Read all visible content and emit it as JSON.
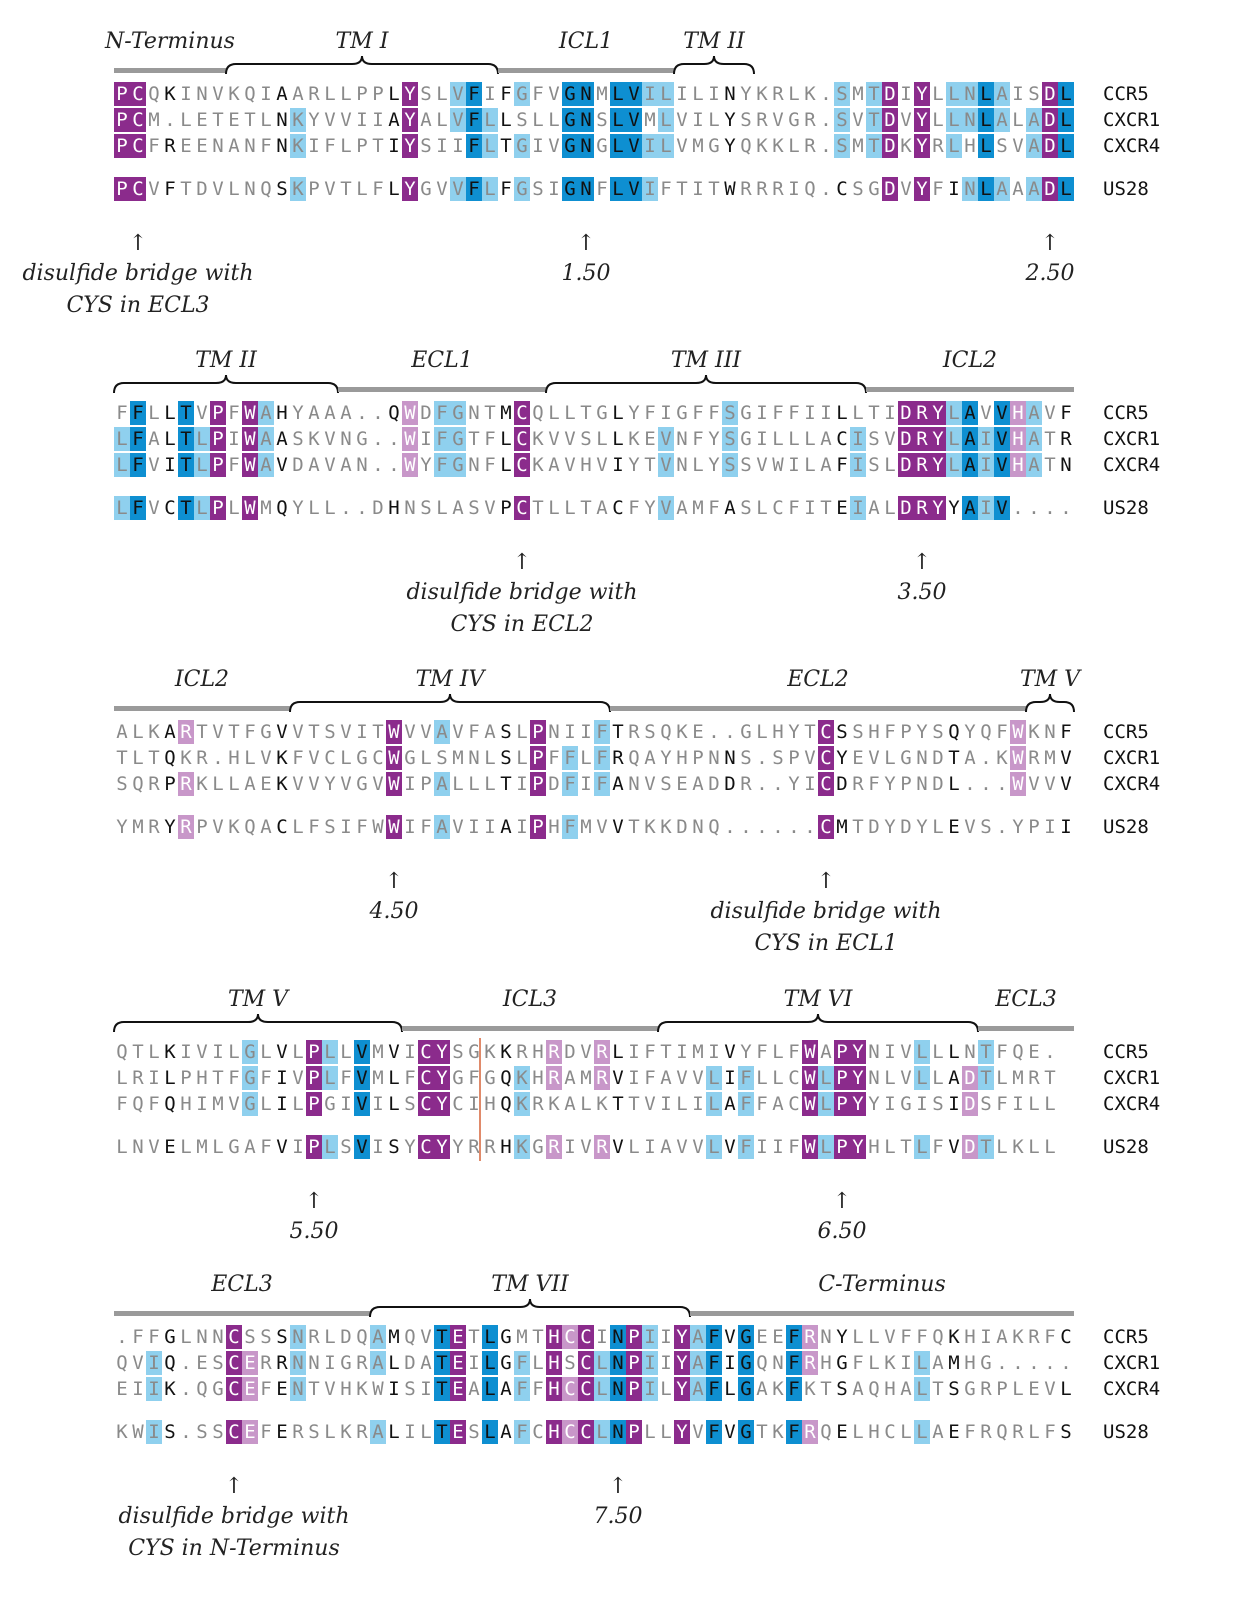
{
  "colors": {
    "dark_blue": "#0e8fd1",
    "light_blue": "#8fd0ee",
    "dark_purple": "#8b2b8c",
    "light_purple": "#c897c9",
    "gray_bar": "#9a9a9a",
    "bracket": "#111111",
    "text_dark": "#111111",
    "text_gray": "#8a8a8a",
    "text_white": "#ffffff",
    "separator": "#e08a6a"
  },
  "legend": {
    "names": [
      "CCR5",
      "CXCR1",
      "CXCR4",
      "US28"
    ]
  },
  "blocks": [
    {
      "regions": [
        {
          "label": "N-Terminus",
          "start": 0,
          "end": 7,
          "type": "bar"
        },
        {
          "label": "TM I",
          "start": 7,
          "end": 24,
          "type": "bracket"
        },
        {
          "label": "ICL1",
          "start": 24,
          "end": 35,
          "type": "bar"
        },
        {
          "label": "TM II",
          "start": 35,
          "end": 40,
          "type": "bracket"
        }
      ],
      "rows": [
        {
          "name": "CCR5",
          "seq": "PCQKINVKQIAARLLPPLYSLVFIFGFVGNMLVILILINYKRLK.SMTDIYLLNLAISDL"
        },
        {
          "name": "CXCR1",
          "seq": "PCM.LETETLNKYVVIIAYALVFLLSLLGNSLVMLVILYSRVGR.SVTDVYLLNLALADL"
        },
        {
          "name": "CXCR4",
          "seq": "PCFREENANFNKIFLPTIYSIIFLTGIVGNGLVILVMGYQKKLR.SMTDKYRLHLSVADL"
        },
        {
          "name": "US28",
          "seq": "PCVFTDVLNQSKPVTLFLYGVVFLFGSIGNFLVIFTITWRRRIQ.CSGDVYFINLAAADL"
        }
      ],
      "annotations": [
        {
          "col": 1,
          "lines": [
            "disulfide bridge with",
            "CYS in ECL3"
          ]
        },
        {
          "col": 29,
          "lines": [
            "1.50"
          ]
        },
        {
          "col": 58,
          "lines": [
            "2.50"
          ]
        }
      ]
    },
    {
      "regions": [
        {
          "label": "TM II",
          "start": 0,
          "end": 14,
          "type": "bracket"
        },
        {
          "label": "ECL1",
          "start": 14,
          "end": 27,
          "type": "bar"
        },
        {
          "label": "TM III",
          "start": 27,
          "end": 47,
          "type": "bracket"
        },
        {
          "label": "ICL2",
          "start": 47,
          "end": 60,
          "type": "bar"
        }
      ],
      "rows": [
        {
          "name": "CCR5",
          "seq": "FFLLTVPFWAHYAAA..QWDFGNTMCQLLTGLYFIGFFSGIFFIILLTIDRYLAVVHAVF"
        },
        {
          "name": "CXCR1",
          "seq": "LFALTLPIWAASKVNG..WIFGTFLCKVVSLLKEVNFYSGILLLACISVDRYLAIVHATR"
        },
        {
          "name": "CXCR4",
          "seq": "LFVITLPFWAVDAVAN..WYFGNFLCKAVHVIYTVNLYSSVWILAFISLDRYLAIVHATN"
        },
        {
          "name": "US28",
          "seq": "LFVCTLPLWMQYLL..DHNSLASVPCTLLTACFYVAMFASLCFITEIALDRYYAIV...."
        }
      ],
      "annotations": [
        {
          "col": 25,
          "lines": [
            "disulfide bridge with",
            "CYS in ECL2"
          ]
        },
        {
          "col": 50,
          "lines": [
            "3.50"
          ]
        }
      ]
    },
    {
      "regions": [
        {
          "label": "ICL2",
          "start": 0,
          "end": 11,
          "type": "bar"
        },
        {
          "label": "TM IV",
          "start": 11,
          "end": 31,
          "type": "bracket"
        },
        {
          "label": "ECL2",
          "start": 31,
          "end": 57,
          "type": "bar"
        },
        {
          "label": "TM V",
          "start": 57,
          "end": 60,
          "type": "bracket"
        }
      ],
      "rows": [
        {
          "name": "CCR5",
          "seq": "ALKARTVTFGVVTSVITWVVAVFASLPNIIFTRSQKE..GLHYTCSSHFPYSQYQFWKNF"
        },
        {
          "name": "CXCR1",
          "seq": "TLTQKR.HLVKFVCLGCWGLSMNLSLPFFLFRQAYHPNNS.SPVCYEVLGNDTA.KWRMV"
        },
        {
          "name": "CXCR4",
          "seq": "SQRPRKLLAEKVVYVGVWIPALLLTIPDFIFANVSEADDR..YICDRFYPNDL...WVVV"
        },
        {
          "name": "US28",
          "seq": "YMRYRPVKQACLFSIFWWIFAVIIAIPHFMVVTKKDNQ......CMTDYDYLEVS.YPII"
        }
      ],
      "annotations": [
        {
          "col": 17,
          "lines": [
            "4.50"
          ]
        },
        {
          "col": 44,
          "lines": [
            "disulfide bridge with",
            "CYS in ECL1"
          ]
        }
      ]
    },
    {
      "regions": [
        {
          "label": "TM V",
          "start": 0,
          "end": 18,
          "type": "bracket"
        },
        {
          "label": "ICL3",
          "start": 18,
          "end": 34,
          "type": "bar"
        },
        {
          "label": "TM VI",
          "start": 34,
          "end": 54,
          "type": "bracket"
        },
        {
          "label": "ECL3",
          "start": 54,
          "end": 60,
          "type": "bar"
        }
      ],
      "separator_after_col": 23,
      "rows": [
        {
          "name": "CCR5",
          "seq": "QTLKIVILGLVLPLLVMVICYSGKKRHRDVRLIFTIMIVYFLFWAPYNIVLLLNTFQE."
        },
        {
          "name": "CXCR1",
          "seq": "LRILPHTFGFIVPLFVMLFCYGFGQKHRAMRVIFAVVLIFLLCWLPYNLVLLADTLMRT"
        },
        {
          "name": "CXCR4",
          "seq": "FQFQHIMVGLILPGIVILSCYCIHQKRKALKTTVILILAFFACWLPYYIGISIDSFILL"
        },
        {
          "name": "US28",
          "seq": "LNVELMLGAFVIPLSVISYCYYRRHKGRIVRVLIAVVLVFIIFWLPYHLTLFVDTLKLL"
        }
      ],
      "annotations": [
        {
          "col": 12,
          "lines": [
            "5.50"
          ]
        },
        {
          "col": 45,
          "lines": [
            "6.50"
          ]
        }
      ]
    },
    {
      "regions": [
        {
          "label": "ECL3",
          "start": 0,
          "end": 16,
          "type": "bar"
        },
        {
          "label": "TM VII",
          "start": 16,
          "end": 36,
          "type": "bracket"
        },
        {
          "label": "C-Terminus",
          "start": 36,
          "end": 60,
          "type": "bar"
        }
      ],
      "rows": [
        {
          "name": "CCR5",
          "seq": ".FFGLNNCSSSNRLDQAMQVTETLGMTHCCINPIIYAFVGEEFRNYLLVFFQKHIAKRFC"
        },
        {
          "name": "CXCR1",
          "seq": "QVIQ.ESCERRNNIGRALDATEILGFLHSCLNPIIYAFIGQNFRHGFLKILAMHG....."
        },
        {
          "name": "CXCR4",
          "seq": "EIIK.QGCEFENTVHKWISITEALAFFHCCLNPILYAFLGAKFKTSAQHALTSGRPLEVL"
        },
        {
          "name": "US28",
          "seq": "KWIS.SSCEFERSLKRALILTESLAFCHCCLNPLLYVFVGTKFRQELHCLLAEFRQRLFS"
        }
      ],
      "annotations": [
        {
          "col": 7,
          "lines": [
            "disulfide bridge with",
            "CYS in N-Terminus"
          ]
        },
        {
          "col": 31,
          "lines": [
            "7.50"
          ]
        }
      ]
    }
  ]
}
